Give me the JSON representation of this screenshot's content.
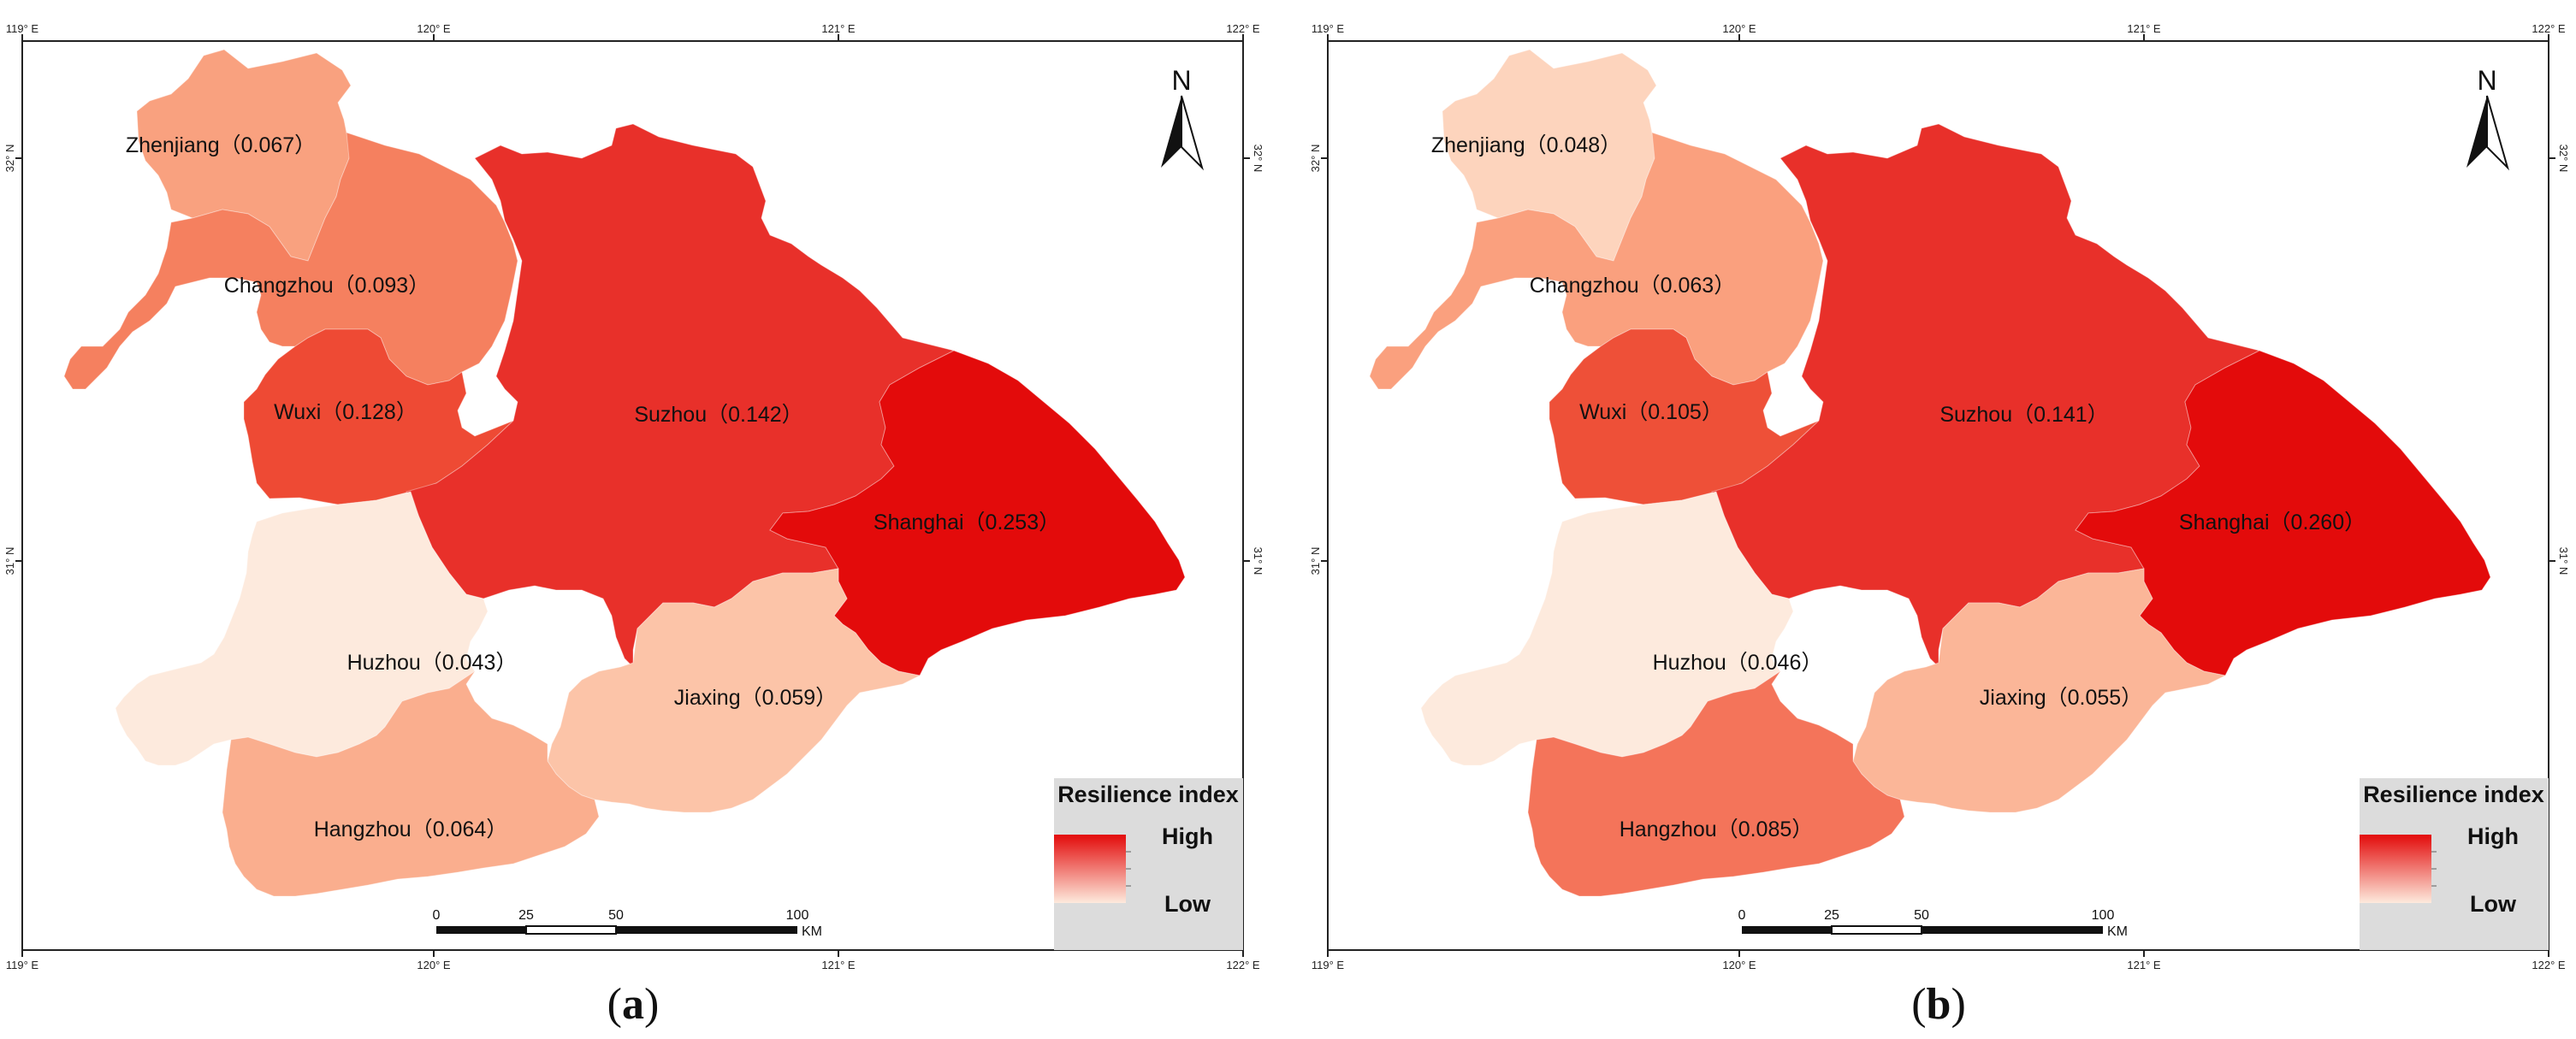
{
  "panels": [
    {
      "id": "a",
      "caption_open": "(",
      "caption_letter": "a",
      "caption_close": ")",
      "cities": [
        {
          "name": "Zhenjiang",
          "label": "Zhenjiang（0.067）",
          "value": 0.067,
          "color": "#f9a17f"
        },
        {
          "name": "Changzhou",
          "label": "Changzhou（0.093）",
          "value": 0.093,
          "color": "#f5805f"
        },
        {
          "name": "Wuxi",
          "label": "Wuxi（0.128）",
          "value": 0.128,
          "color": "#ee4a34"
        },
        {
          "name": "Suzhou",
          "label": "Suzhou（0.142）",
          "value": 0.142,
          "color": "#e8302a"
        },
        {
          "name": "Shanghai",
          "label": "Shanghai（0.253）",
          "value": 0.253,
          "color": "#e30b0b"
        },
        {
          "name": "Huzhou",
          "label": "Huzhou（0.043）",
          "value": 0.043,
          "color": "#fdeadd"
        },
        {
          "name": "Jiaxing",
          "label": "Jiaxing（0.059）",
          "value": 0.059,
          "color": "#fcc4a8"
        },
        {
          "name": "Hangzhou",
          "label": "Hangzhou（0.064）",
          "value": 0.064,
          "color": "#faae8e"
        }
      ]
    },
    {
      "id": "b",
      "caption_open": "(",
      "caption_letter": "b",
      "caption_close": ")",
      "cities": [
        {
          "name": "Zhenjiang",
          "label": "Zhenjiang（0.048）",
          "value": 0.048,
          "color": "#fdd4bd"
        },
        {
          "name": "Changzhou",
          "label": "Changzhou（0.063）",
          "value": 0.063,
          "color": "#faa07e"
        },
        {
          "name": "Wuxi",
          "label": "Wuxi（0.105）",
          "value": 0.105,
          "color": "#ee5038"
        },
        {
          "name": "Suzhou",
          "label": "Suzhou（0.141）",
          "value": 0.141,
          "color": "#e8302a"
        },
        {
          "name": "Shanghai",
          "label": "Shanghai（0.260）",
          "value": 0.26,
          "color": "#e30b0b"
        },
        {
          "name": "Huzhou",
          "label": "Huzhou（0.046）",
          "value": 0.046,
          "color": "#fdeadd"
        },
        {
          "name": "Jiaxing",
          "label": "Jiaxing（0.055）",
          "value": 0.055,
          "color": "#fbb698"
        },
        {
          "name": "Hangzhou",
          "label": "Hangzhou（0.085）",
          "value": 0.085,
          "color": "#f4745a"
        }
      ]
    }
  ],
  "graticule": {
    "lon_labels": [
      "119° E",
      "120° E",
      "121° E",
      "122° E"
    ],
    "lat_labels": [
      "32° N",
      "31° N"
    ]
  },
  "north_arrow": {
    "label": "N"
  },
  "legend": {
    "title": "Resilience index",
    "high": "High",
    "low": "Low",
    "high_color": "#e30b0b",
    "low_color": "#fdeadd"
  },
  "scale_bar": {
    "ticks": [
      "0",
      "25",
      "50",
      "100"
    ],
    "unit": "KM"
  }
}
